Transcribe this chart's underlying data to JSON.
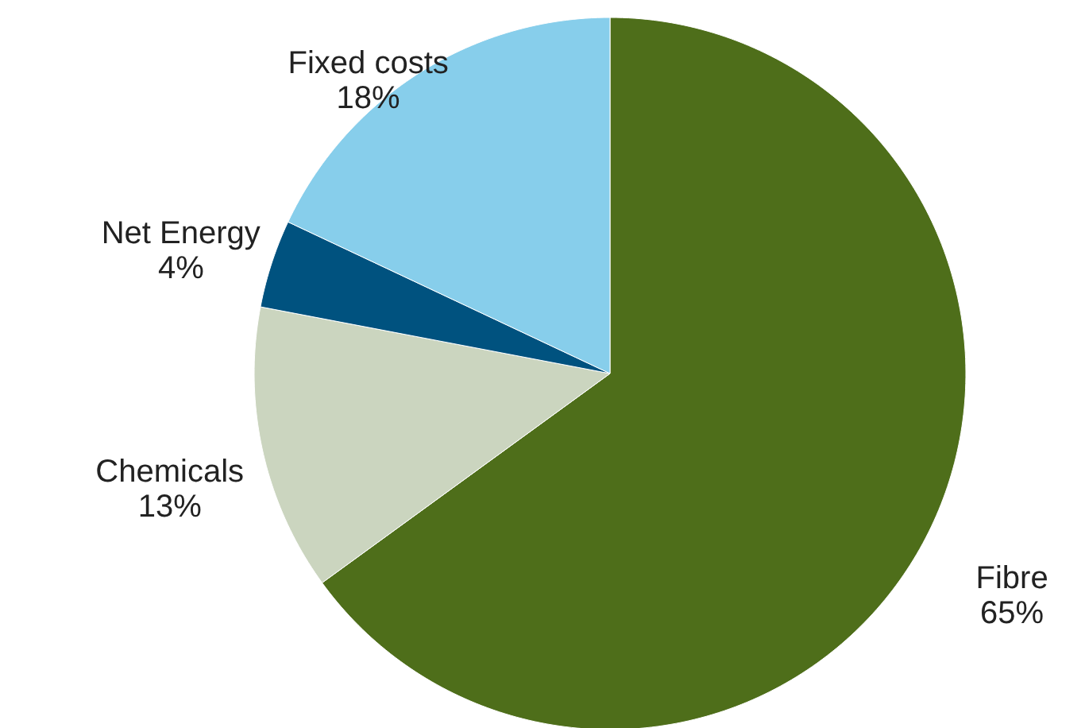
{
  "chart_data": {
    "type": "pie",
    "categories": [
      "Fibre",
      "Chemicals",
      "Net Energy",
      "Fixed costs"
    ],
    "values": [
      65,
      13,
      4,
      18
    ],
    "colors": [
      "#4e6e1a",
      "#cbd5bf",
      "#00527f",
      "#87ceeb"
    ],
    "value_labels": [
      "65%",
      "13%",
      "4%",
      "18%"
    ]
  }
}
